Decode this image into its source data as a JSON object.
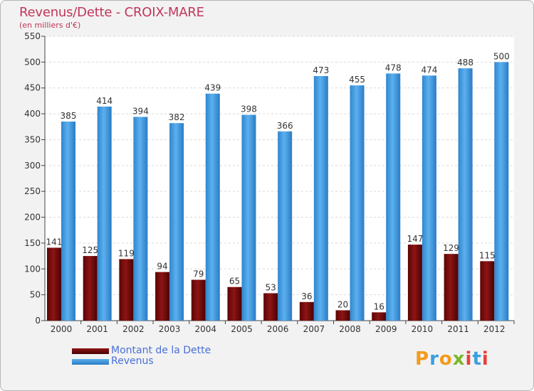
{
  "title": "Revenus/Dette - CROIX-MARE",
  "subtitle": "(en milliers d'€)",
  "logo_text": "Proxiti",
  "chart_data": {
    "type": "bar",
    "categories": [
      "2000",
      "2001",
      "2002",
      "2003",
      "2004",
      "2005",
      "2006",
      "2007",
      "2008",
      "2009",
      "2010",
      "2011",
      "2012"
    ],
    "series": [
      {
        "name": "Montant de la Dette",
        "color": "#7a0a0a",
        "values": [
          141,
          125,
          119,
          94,
          79,
          65,
          53,
          36,
          20,
          16,
          147,
          129,
          115
        ]
      },
      {
        "name": "Revenus",
        "color": "#3d9be0",
        "values": [
          385,
          414,
          394,
          382,
          439,
          398,
          366,
          473,
          455,
          478,
          474,
          488,
          500
        ]
      }
    ],
    "ylim": [
      0,
      550
    ],
    "yticks": [
      0,
      50,
      100,
      150,
      200,
      250,
      300,
      350,
      400,
      450,
      500,
      550
    ],
    "grid": true,
    "legend_position": "bottom-left"
  }
}
